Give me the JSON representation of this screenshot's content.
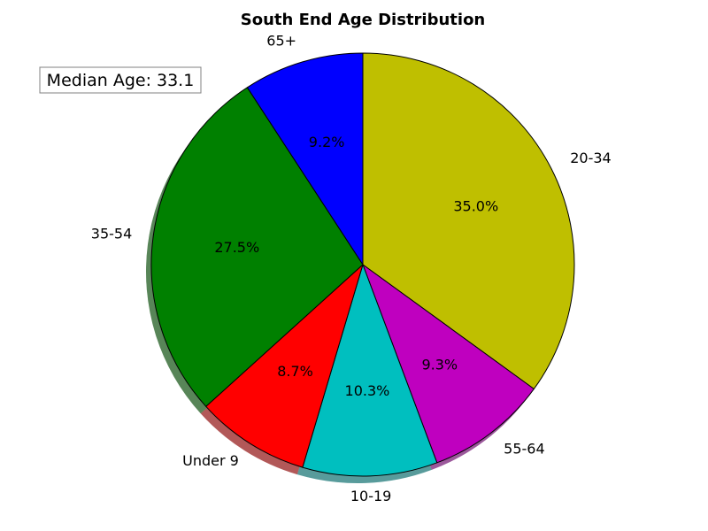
{
  "chart_data": {
    "type": "pie",
    "title": "South End Age Distribution",
    "categories": [
      "20-34",
      "55-64",
      "10-19",
      "Under 9",
      "35-54",
      "65+"
    ],
    "values": [
      35.0,
      9.3,
      10.3,
      8.7,
      27.5,
      9.2
    ],
    "percent_labels": [
      "35.0%",
      "9.3%",
      "10.3%",
      "8.7%",
      "27.5%",
      "9.2%"
    ],
    "colors": [
      "#bfbf00",
      "#bf00bf",
      "#00bfbf",
      "#ff0000",
      "#008000",
      "#0000ff"
    ],
    "start_angle_deg": 90,
    "direction": "clockwise",
    "shadow": true,
    "legend": "none"
  },
  "annotation": {
    "text": "Median Age: 33.1",
    "placement": "top-left"
  }
}
